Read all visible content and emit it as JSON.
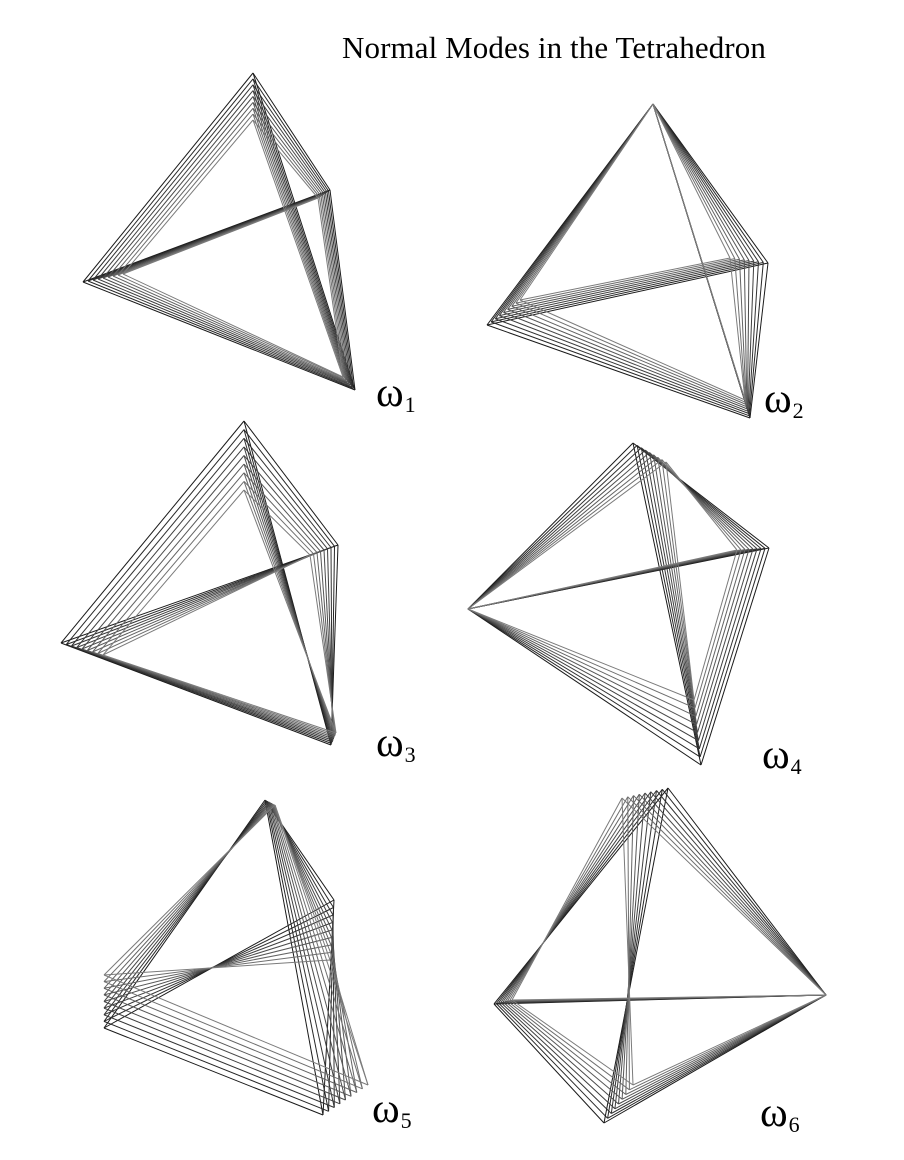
{
  "title": "Normal Modes in the Tetrahedron",
  "modes": [
    {
      "symbol": "ω",
      "subscript": "1"
    },
    {
      "symbol": "ω",
      "subscript": "2"
    },
    {
      "symbol": "ω",
      "subscript": "3"
    },
    {
      "symbol": "ω",
      "subscript": "4"
    },
    {
      "symbol": "ω",
      "subscript": "5"
    },
    {
      "symbol": "ω",
      "subscript": "6"
    }
  ],
  "colors": {
    "frame_dark": "#1a1a1a",
    "frame_light": "#8c8c8c",
    "background": "#ffffff"
  }
}
